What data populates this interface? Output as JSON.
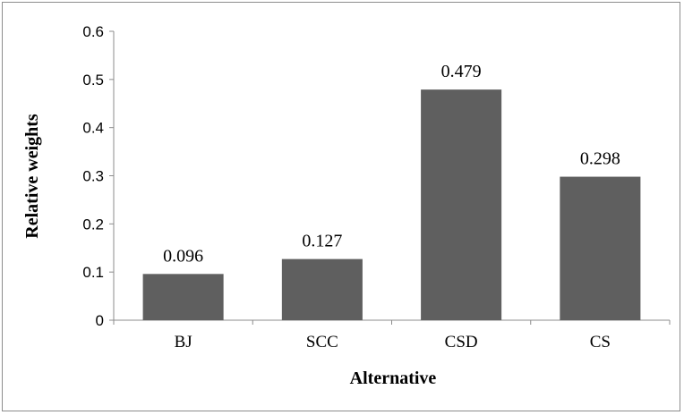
{
  "chart_data": {
    "type": "bar",
    "title": "",
    "xlabel": "Alternative",
    "ylabel": "Relative weights",
    "categories": [
      "BJ",
      "SCC",
      "CSD",
      "CS"
    ],
    "values": [
      0.096,
      0.127,
      0.479,
      0.298
    ],
    "data_labels": [
      "0.096",
      "0.127",
      "0.479",
      "0.298"
    ],
    "yticks": [
      "0",
      "0.1",
      "0.2",
      "0.3",
      "0.4",
      "0.5",
      "0.6"
    ],
    "ylim": [
      0,
      0.6
    ],
    "grid": false,
    "legend": "none",
    "bar_color": "#5f5f5f"
  }
}
